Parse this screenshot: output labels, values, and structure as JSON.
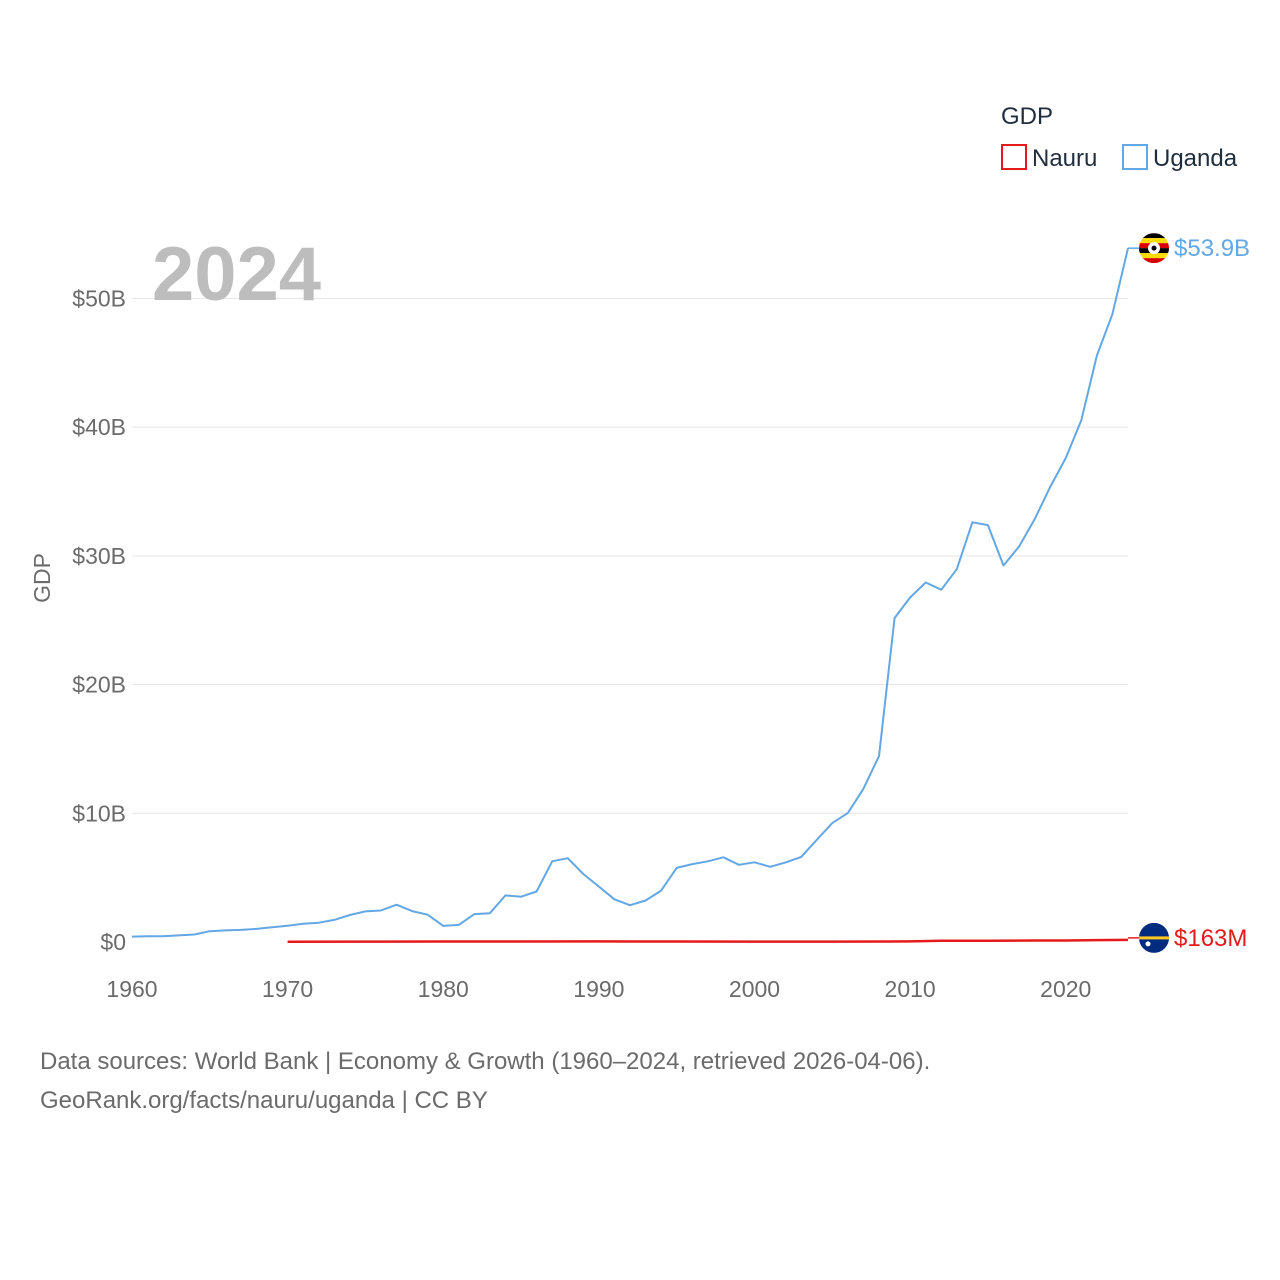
{
  "chart_data": {
    "type": "line",
    "year_label": "2024",
    "ylabel": "GDP",
    "xlim": [
      1960,
      2024
    ],
    "ylim": [
      0,
      55000000000
    ],
    "x_ticks": [
      1960,
      1970,
      1980,
      1990,
      2000,
      2010,
      2020
    ],
    "x_tick_labels": [
      "1960",
      "1970",
      "1980",
      "1990",
      "2000",
      "2010",
      "2020"
    ],
    "y_ticks": [
      0,
      10000000000,
      20000000000,
      30000000000,
      40000000000,
      50000000000
    ],
    "y_tick_labels": [
      "$0",
      "$10B",
      "$20B",
      "$30B",
      "$40B",
      "$50B"
    ],
    "legend": {
      "title": "GDP",
      "position": "top-right",
      "items": [
        {
          "name": "Nauru",
          "color": "#e41a1c"
        },
        {
          "name": "Uganda",
          "color": "#63a7e4"
        }
      ]
    },
    "series": [
      {
        "name": "Uganda",
        "color": "#63a7e4",
        "end_label": "$53.9B",
        "flag": "uganda-flag",
        "x": [
          1960,
          1961,
          1962,
          1963,
          1964,
          1965,
          1966,
          1967,
          1968,
          1969,
          1970,
          1971,
          1972,
          1973,
          1974,
          1975,
          1976,
          1977,
          1978,
          1979,
          1980,
          1981,
          1982,
          1983,
          1984,
          1985,
          1986,
          1987,
          1988,
          1989,
          1990,
          1991,
          1992,
          1993,
          1994,
          1995,
          1996,
          1997,
          1998,
          1999,
          2000,
          2001,
          2002,
          2003,
          2004,
          2005,
          2006,
          2007,
          2008,
          2009,
          2010,
          2011,
          2012,
          2013,
          2014,
          2015,
          2016,
          2017,
          2018,
          2019,
          2020,
          2021,
          2022,
          2023,
          2024
        ],
        "values": [
          420000000,
          440000000,
          450000000,
          510000000,
          580000000,
          840000000,
          900000000,
          940000000,
          1020000000,
          1150000000,
          1260000000,
          1420000000,
          1500000000,
          1720000000,
          2100000000,
          2380000000,
          2450000000,
          2900000000,
          2400000000,
          2120000000,
          1250000000,
          1330000000,
          2170000000,
          2240000000,
          3620000000,
          3520000000,
          3920000000,
          6270000000,
          6510000000,
          5280000000,
          4300000000,
          3320000000,
          2860000000,
          3220000000,
          3990000000,
          5760000000,
          6050000000,
          6270000000,
          6580000000,
          6000000000,
          6190000000,
          5840000000,
          6180000000,
          6610000000,
          7940000000,
          9240000000,
          10030000000,
          11900000000,
          14440000000,
          25170000000,
          26760000000,
          27930000000,
          27370000000,
          28960000000,
          32600000000,
          32390000000,
          29250000000,
          30720000000,
          32840000000,
          35350000000,
          37600000000,
          40530000000,
          45560000000,
          48770000000,
          53900000000
        ]
      },
      {
        "name": "Nauru",
        "color": "#e41a1c",
        "end_label": "$163M",
        "flag": "nauru-flag",
        "x": [
          1970,
          1975,
          1980,
          1985,
          1990,
          1995,
          2000,
          2005,
          2010,
          2012,
          2015,
          2018,
          2020,
          2022,
          2024
        ],
        "values": [
          20000000,
          30000000,
          40000000,
          40000000,
          45000000,
          40000000,
          30000000,
          30000000,
          50000000,
          100000000,
          90000000,
          120000000,
          120000000,
          150000000,
          163000000
        ]
      }
    ]
  },
  "footer": {
    "line1": "Data sources: World Bank | Economy & Growth (1960–2024, retrieved 2026-04-06).",
    "line2": "GeoRank.org/facts/nauru/uganda | CC BY"
  }
}
